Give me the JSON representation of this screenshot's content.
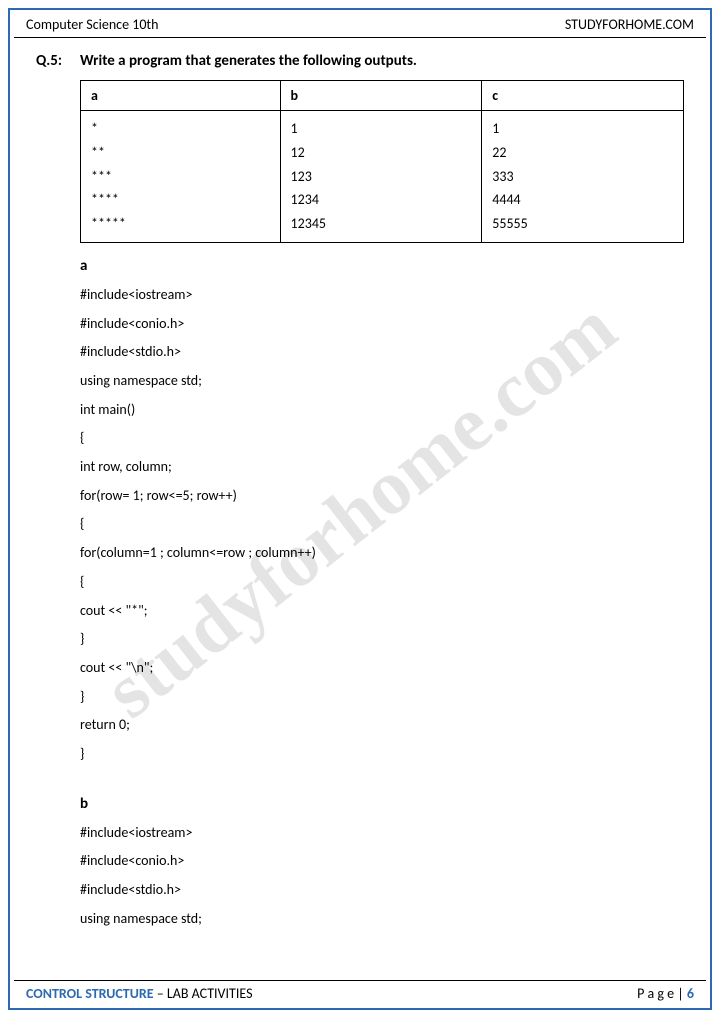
{
  "header": {
    "left": "Computer Science 10th",
    "right": "STUDYFORHOME.COM"
  },
  "footer": {
    "left_blue": "CONTROL STRUCTURE",
    "left_rest": " – LAB ACTIVITIES",
    "right_label": "P a g e  | ",
    "right_num": "6"
  },
  "watermark": "studyforhome.com",
  "question": {
    "num": "Q.5:",
    "text": "Write a program that generates the following outputs."
  },
  "table": {
    "headers": [
      "a",
      "b",
      "c"
    ],
    "rows": [
      [
        "*",
        "1",
        "1"
      ],
      [
        "**",
        "12",
        "22"
      ],
      [
        "***",
        "123",
        "333"
      ],
      [
        "****",
        "1234",
        "4444"
      ],
      [
        "*****",
        "12345",
        "55555"
      ]
    ]
  },
  "code_a": {
    "label": "a",
    "lines": [
      "#include<iostream>",
      "#include<conio.h>",
      "#include<stdio.h>",
      "using namespace std;",
      "int main()",
      "{",
      "int row, column;",
      "for(row= 1; row<=5; row++)",
      "{",
      "for(column=1 ; column<=row ; column++)",
      "{",
      "cout << \"*\";",
      "}",
      "cout << \"\\n\";",
      "}",
      "return 0;",
      "}"
    ]
  },
  "code_b": {
    "label": "b",
    "lines": [
      "#include<iostream>",
      "#include<conio.h>",
      "#include<stdio.h>",
      "using namespace std;"
    ]
  }
}
